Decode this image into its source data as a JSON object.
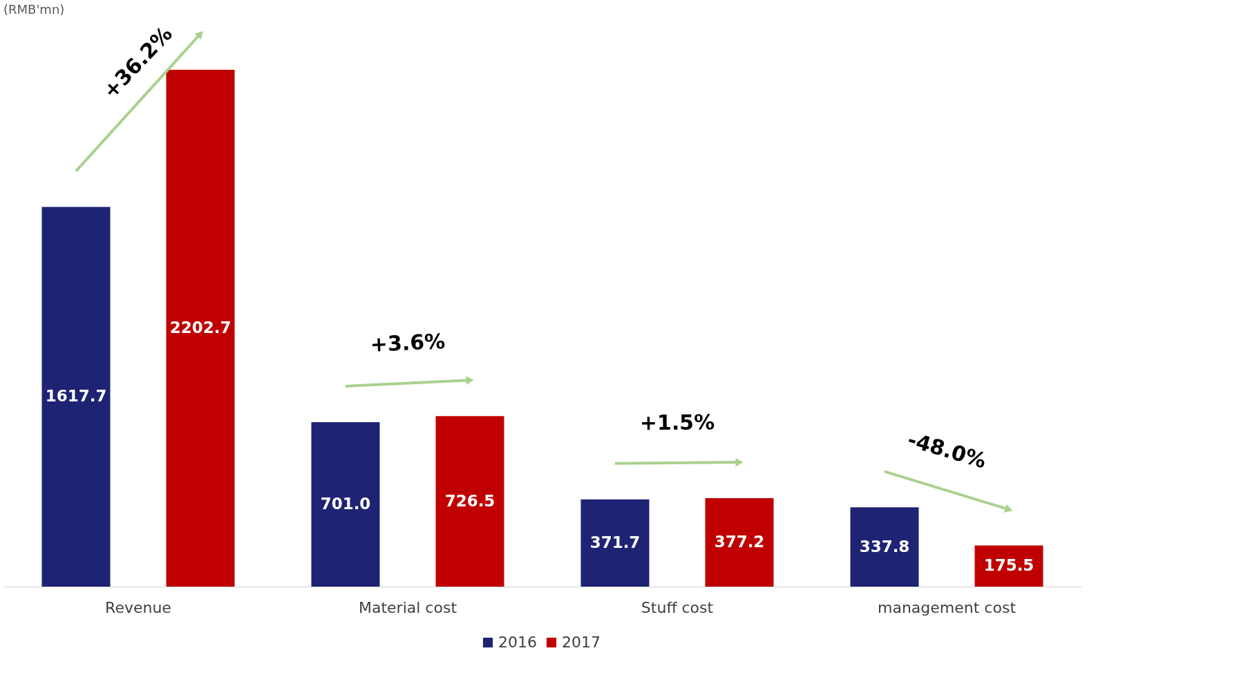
{
  "chart_data": {
    "type": "bar",
    "categories": [
      "Revenue",
      "Material cost",
      "Stuff cost",
      "management cost"
    ],
    "series": [
      {
        "name": "2016",
        "color": "#1f2374",
        "values": [
          1617.7,
          701.0,
          371.7,
          337.8
        ],
        "value_labels": [
          "1617.7",
          "701.0",
          "371.7",
          "337.8"
        ]
      },
      {
        "name": "2017",
        "color": "#c00000",
        "values": [
          2202.7,
          726.5,
          377.2,
          175.5
        ],
        "value_labels": [
          "2202.7",
          "726.5",
          "377.2",
          "175.5"
        ]
      }
    ],
    "legend": "bottom",
    "grid": false,
    "annotations": [
      "+36.2%",
      "+3.6%",
      "+1.5%",
      "-48.0%",
      "(RMB'mn)"
    ]
  }
}
